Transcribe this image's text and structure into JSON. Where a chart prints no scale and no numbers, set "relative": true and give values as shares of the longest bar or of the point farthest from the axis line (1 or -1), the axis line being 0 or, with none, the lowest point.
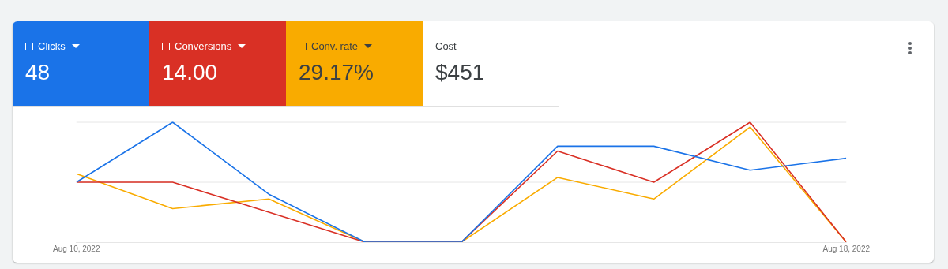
{
  "chart_data": {
    "type": "line",
    "relative": true,
    "legend": "top left",
    "x": [
      "2022-08-10",
      "2022-08-11",
      "2022-08-12",
      "2022-08-13",
      "2022-08-14",
      "2022-08-15",
      "2022-08-16",
      "2022-08-17",
      "2022-08-18"
    ],
    "xlim": [
      "2022-08-10",
      "2022-08-18"
    ],
    "ref_lines": [
      {
        "axis": "y",
        "value": 0.5,
        "color": "#e6e6e6"
      },
      {
        "axis": "y",
        "value": 1,
        "color": "#e6e6e6"
      }
    ],
    "xticks": [
      {
        "value": "2022-08-10",
        "label": "Aug 10, 2022"
      },
      {
        "value": "2022-08-18",
        "label": "Aug 18, 2022"
      }
    ],
    "series": [
      {
        "name": "Clicks",
        "color": "#1a73e8",
        "values": [
          0.5,
          1,
          0.4,
          0,
          0,
          0.8,
          0.8,
          0.6,
          0.7
        ]
      },
      {
        "name": "Conversions",
        "color": "#d93025",
        "values": [
          0.5,
          0.5,
          0.25,
          0,
          0,
          0.76,
          0.5,
          1,
          0
        ]
      },
      {
        "name": "Conv. rate",
        "color": "#f9ab00",
        "values": [
          0.57,
          0.28,
          0.36,
          0,
          0,
          0.54,
          0.36,
          0.96,
          0
        ]
      }
    ],
    "annotations": [
      "48",
      "14.00",
      "29.17%",
      "Cost",
      "$451"
    ]
  }
}
